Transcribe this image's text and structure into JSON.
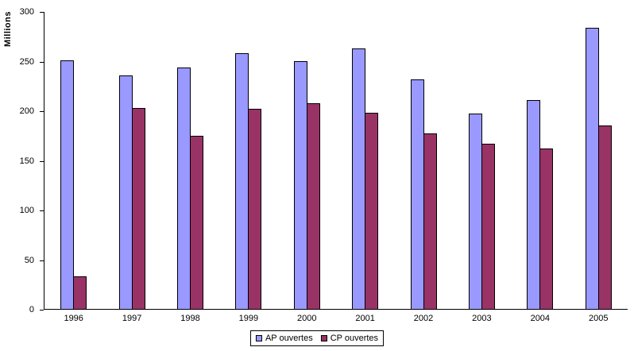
{
  "chart_data": {
    "type": "bar",
    "title": "",
    "xlabel": "",
    "ylabel": "Millions",
    "categories": [
      "1996",
      "1997",
      "1998",
      "1999",
      "2000",
      "2001",
      "2002",
      "2003",
      "2004",
      "2005"
    ],
    "series": [
      {
        "name": "AP ouvertes",
        "color": "#9999FF",
        "values": [
          251,
          236,
          244,
          258,
          250,
          263,
          232,
          197,
          211,
          284
        ]
      },
      {
        "name": "CP ouvertes",
        "color": "#993366",
        "values": [
          33,
          203,
          175,
          202,
          208,
          198,
          177,
          167,
          162,
          185
        ]
      }
    ],
    "ylim": [
      0,
      300
    ],
    "yticks": [
      0,
      50,
      100,
      150,
      200,
      250,
      300
    ],
    "grid": false,
    "legend_position": "bottom-center"
  }
}
